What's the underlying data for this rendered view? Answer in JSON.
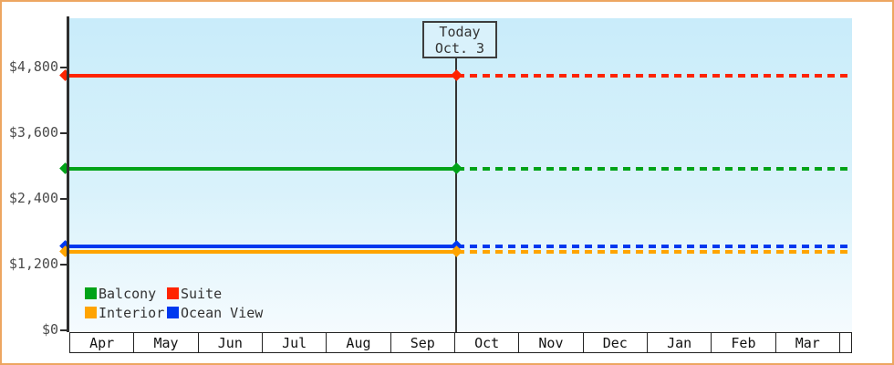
{
  "page": {
    "frame_border_color": "#eda661",
    "plot_background_top": "#c9ecfa",
    "plot_background_bottom": "#f5fbfe",
    "axis_color": "#2e2e2e"
  },
  "chart_data": {
    "type": "line",
    "title": "",
    "xlabel": "",
    "ylabel": "",
    "categories": [
      "Apr",
      "May",
      "Jun",
      "Jul",
      "Aug",
      "Sep",
      "Oct",
      "Nov",
      "Dec",
      "Jan",
      "Feb",
      "Mar"
    ],
    "y_tick_labels": [
      "$0",
      "$1,200",
      "$2,400",
      "$3,600",
      "$4,800"
    ],
    "y_tick_values": [
      0,
      1200,
      2400,
      3600,
      4800
    ],
    "ylim": [
      0,
      5700
    ],
    "grid": "off",
    "series": [
      {
        "name": "Suite",
        "color": "#ff2400",
        "value": 4650
      },
      {
        "name": "Balcony",
        "color": "#00a318",
        "value": 2950
      },
      {
        "name": "Ocean View",
        "color": "#0038ef",
        "value": 1530
      },
      {
        "name": "Interior",
        "color": "#ffa400",
        "value": 1425
      }
    ],
    "line_style_note": "flat price lines: solid with diamond endpoints from Apr to today, dashed projection from today to Mar",
    "today": {
      "line1": "Today",
      "line2": "Oct. 3",
      "position": "boundary between Sep and Oct"
    },
    "legend": {
      "position": "bottom-left inside plot",
      "rows": [
        [
          "Balcony",
          "Suite"
        ],
        [
          "Interior",
          "Ocean View"
        ]
      ]
    }
  }
}
